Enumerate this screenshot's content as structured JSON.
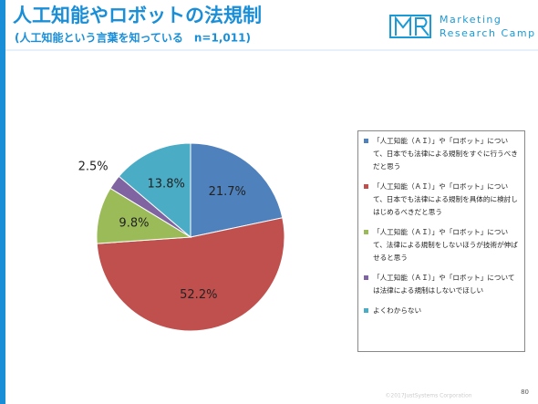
{
  "chart_data": {
    "type": "pie",
    "title": "人工知能やロボットの法規制",
    "subtitle": "(人工知能という言葉を知っている　n=1,011)",
    "categories": [
      "「人工知能（ＡＩ）」や「ロボット」について、日本でも法律による規制をすぐに行うべきだと思う",
      "「人工知能（ＡＩ）」や「ロボット」について、日本でも法律による規制を具体的に検討しはじめるべきだと思う",
      "「人工知能（ＡＩ）」や「ロボット」について、法律による規制をしないほうが技術が伸ばせると思う",
      "「人工知能（ＡＩ）」や「ロボット」については法律による規制はしないでほしい",
      "よくわからない"
    ],
    "values": [
      21.7,
      52.2,
      9.8,
      2.5,
      13.8
    ],
    "value_labels": [
      "21.7%",
      "52.2%",
      "9.8%",
      "2.5%",
      "13.8%"
    ],
    "colors": [
      "#4f81bd",
      "#c0504d",
      "#9bbb59",
      "#8064a2",
      "#4bacc6"
    ],
    "legend": "right"
  },
  "logo": {
    "line1": "Marketing",
    "line2": "Research Camp"
  },
  "footer": {
    "copyright": "©2017JustSystems Corporation",
    "page": "80"
  }
}
